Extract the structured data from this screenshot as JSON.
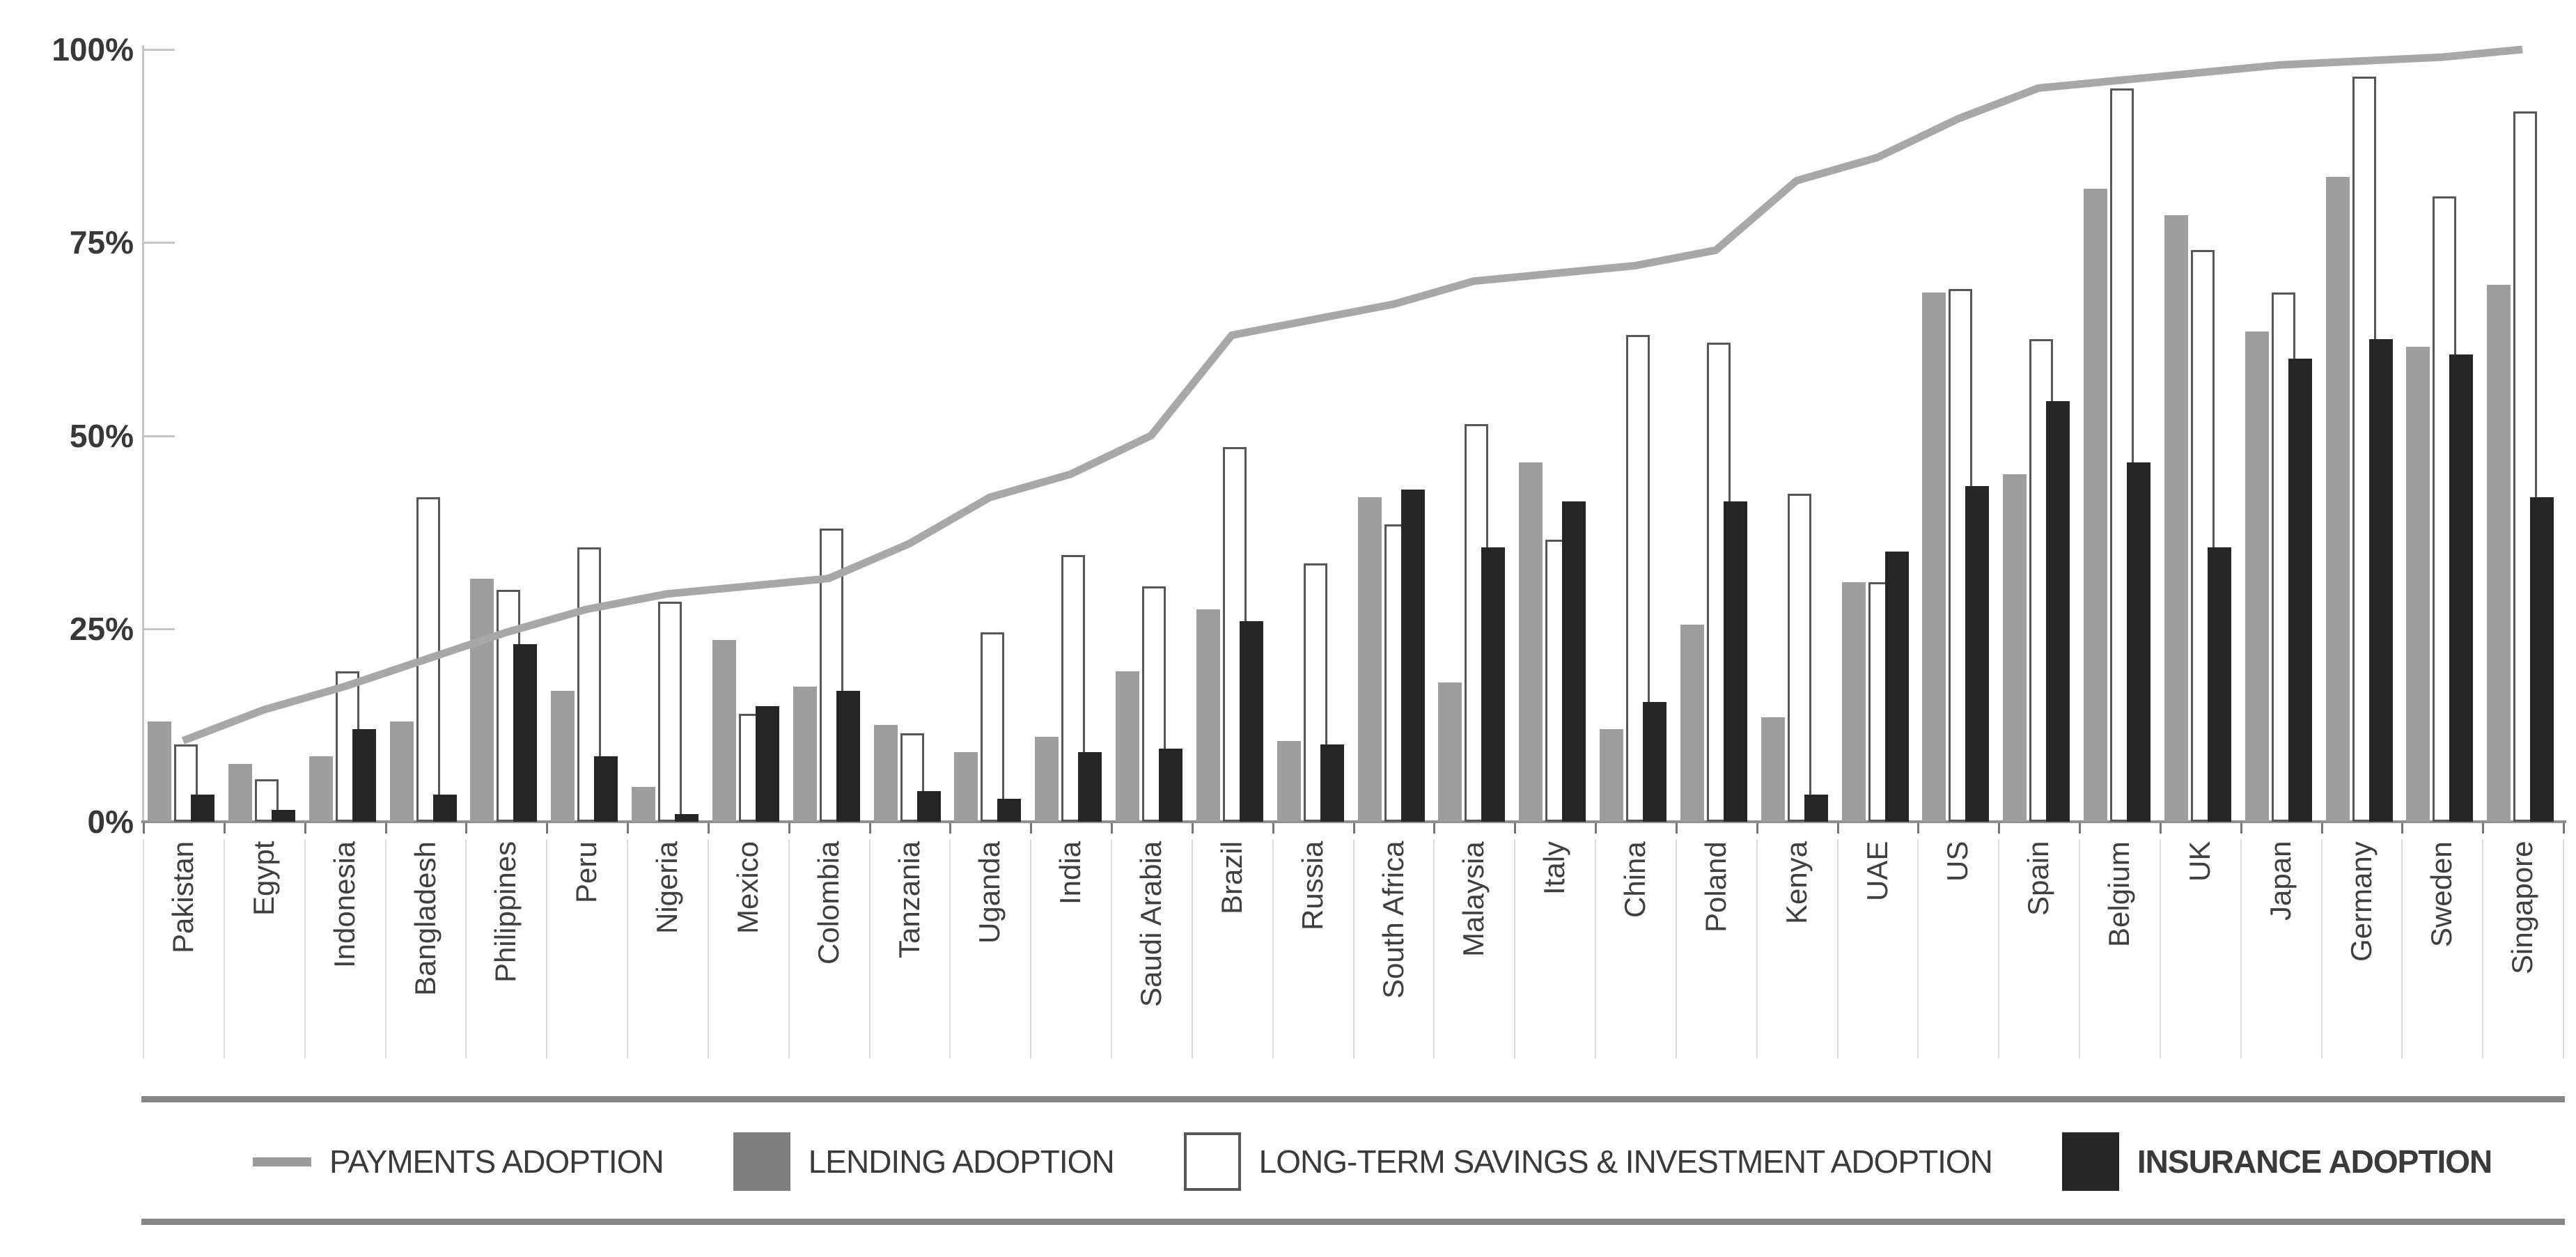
{
  "chart_data": {
    "type": "bar",
    "subtype": "grouped-bars-with-line-overlay",
    "title": "",
    "xlabel": "",
    "ylabel": "",
    "ylim": [
      0,
      100
    ],
    "yticks": [
      {
        "value": 100,
        "label": "100%"
      },
      {
        "value": 75,
        "label": "75%"
      },
      {
        "value": 50,
        "label": "50%"
      },
      {
        "value": 25,
        "label": "25%"
      },
      {
        "value": 0,
        "label": "0%"
      }
    ],
    "grid": false,
    "legend_position": "bottom",
    "categories": [
      "Pakistan",
      "Egypt",
      "Indonesia",
      "Bangladesh",
      "Philippines",
      "Peru",
      "Nigeria",
      "Mexico",
      "Colombia",
      "Tanzania",
      "Uganda",
      "India",
      "Saudi Arabia",
      "Brazil",
      "Russia",
      "South Africa",
      "Malaysia",
      "Italy",
      "China",
      "Poland",
      "Kenya",
      "UAE",
      "US",
      "Spain",
      "Belgium",
      "UK",
      "Japan",
      "Germany",
      "Sweden",
      "Singapore"
    ],
    "series": [
      {
        "name": "PAYMENTS ADOPTION",
        "type": "line",
        "color": "#a8a8a8",
        "values": [
          10.5,
          14.5,
          17.5,
          21,
          24.5,
          27.5,
          29.5,
          30.5,
          31.5,
          36,
          42,
          45,
          50,
          63,
          65,
          67,
          70,
          71,
          72,
          74,
          83,
          86,
          91,
          95,
          96,
          97,
          98,
          98.5,
          99,
          100
        ]
      },
      {
        "name": "LENDING ADOPTION",
        "type": "bar",
        "color": "#9d9d9d",
        "values": [
          13,
          7.5,
          8.5,
          13,
          31.5,
          17,
          4.5,
          23.5,
          17.5,
          12.5,
          9,
          11,
          19.5,
          27.5,
          10.5,
          42,
          18,
          46.5,
          12,
          25.5,
          13.5,
          31,
          68.5,
          45,
          82,
          78.5,
          63.5,
          83.5,
          61.5,
          69.5
        ]
      },
      {
        "name": "LONG-TERM SAVINGS & INVESTMENT ADOPTION",
        "type": "bar",
        "color": "#ffffff",
        "border_color": "#575757",
        "values": [
          10,
          5.5,
          19.5,
          42,
          30,
          35.5,
          28.5,
          14,
          38,
          11.5,
          24.5,
          34.5,
          30.5,
          48.5,
          33.5,
          38.5,
          51.5,
          36.5,
          63,
          62,
          42.5,
          31,
          69,
          62.5,
          95,
          74,
          68.5,
          96.5,
          81,
          92
        ]
      },
      {
        "name": "INSURANCE ADOPTION",
        "type": "bar",
        "color": "#262626",
        "values": [
          3.5,
          1.5,
          12,
          3.5,
          23,
          8.5,
          1,
          15,
          17,
          4,
          3,
          9,
          9.5,
          26,
          10,
          43,
          35.5,
          41.5,
          15.5,
          41.5,
          3.5,
          35,
          43.5,
          54.5,
          46.5,
          35.5,
          60,
          62.5,
          60.5,
          42
        ]
      }
    ]
  },
  "legend": {
    "items": [
      {
        "label": "PAYMENTS ADOPTION",
        "swatch": "line",
        "color": "#9a9a9a",
        "bold": false
      },
      {
        "label": "LENDING ADOPTION",
        "swatch": "square",
        "color": "#7f7f7f",
        "bold": false
      },
      {
        "label": "LONG-TERM SAVINGS & INVESTMENT ADOPTION",
        "swatch": "square-outline",
        "color": "#ffffff",
        "border_color": "#575757",
        "bold": false
      },
      {
        "label": "INSURANCE ADOPTION",
        "swatch": "square",
        "color": "#262626",
        "bold": true
      }
    ]
  },
  "colors": {
    "axis": "#c6c6c6",
    "baseline": "#8f8f8f",
    "tick_label": "#383838",
    "country_label": "#3f3f3f",
    "rule": "#868686",
    "background": "#ffffff"
  }
}
